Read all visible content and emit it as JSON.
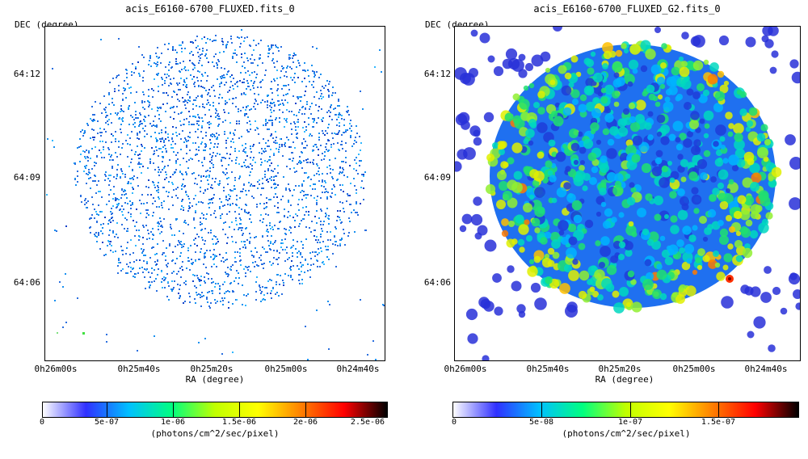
{
  "panels": [
    {
      "title": "acis_E6160-6700_FLUXED.fits_0",
      "ylabel": "DEC (degree)",
      "xlabel": "RA (degree)",
      "yticks": [
        "64:12",
        "64:09",
        "64:06"
      ],
      "xticks": [
        "0h26m00s",
        "0h25m40s",
        "0h25m20s",
        "0h25m00s",
        "0h24m40s"
      ],
      "colorbar": {
        "ticks": [
          "0",
          "5e-07",
          "1e-06",
          "1.5e-06",
          "2e-06",
          "2.5e-06"
        ],
        "label": "(photons/cm^2/sec/pixel)",
        "gradient": [
          "#ffffff",
          "#3030ff",
          "#00c0ff",
          "#00ff80",
          "#c0ff00",
          "#ffff00",
          "#ff8000",
          "#ff0000",
          "#000000"
        ]
      }
    },
    {
      "title": "acis_E6160-6700_FLUXED_G2.fits_0",
      "ylabel": "DEC (degree)",
      "xlabel": "RA (degree)",
      "yticks": [
        "64:12",
        "64:09",
        "64:06"
      ],
      "xticks": [
        "0h26m00s",
        "0h25m40s",
        "0h25m20s",
        "0h25m00s",
        "0h24m40s"
      ],
      "colorbar": {
        "ticks": [
          "0",
          "5e-08",
          "1e-07",
          "1.5e-07"
        ],
        "label": "(photons/cm^2/sec/pixel)",
        "gradient": [
          "#ffffff",
          "#3030ff",
          "#00c0ff",
          "#00ff80",
          "#c0ff00",
          "#ffff00",
          "#ff8000",
          "#ff0000",
          "#000000"
        ]
      }
    }
  ]
}
